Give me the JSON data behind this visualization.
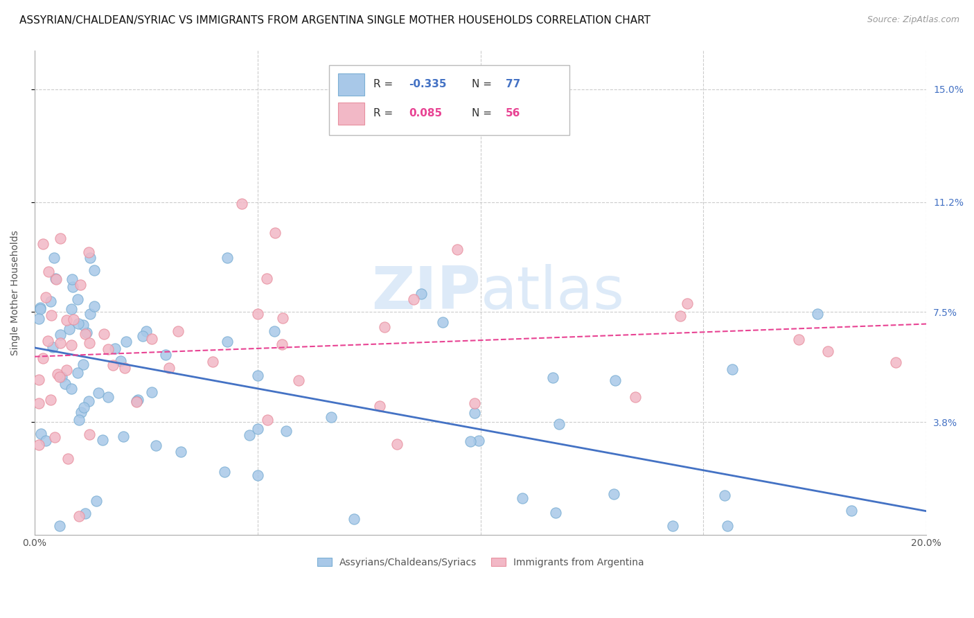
{
  "title": "ASSYRIAN/CHALDEAN/SYRIAC VS IMMIGRANTS FROM ARGENTINA SINGLE MOTHER HOUSEHOLDS CORRELATION CHART",
  "source": "Source: ZipAtlas.com",
  "ylabel": "Single Mother Households",
  "ytick_labels": [
    "15.0%",
    "11.2%",
    "7.5%",
    "3.8%"
  ],
  "ytick_values": [
    0.15,
    0.112,
    0.075,
    0.038
  ],
  "xmin": 0.0,
  "xmax": 0.2,
  "ymin": 0.0,
  "ymax": 0.163,
  "color_blue_fill": "#A8C8E8",
  "color_blue_edge": "#7BAFD4",
  "color_pink_fill": "#F2B8C6",
  "color_pink_edge": "#E8909F",
  "color_blue_line": "#4472C4",
  "color_pink_line": "#E84393",
  "watermark_color": "#DDEAF8",
  "title_fontsize": 11,
  "source_fontsize": 9,
  "legend_label_blue": "Assyrians/Chaldeans/Syriacs",
  "legend_label_pink": "Immigrants from Argentina",
  "blue_line_y_start": 0.063,
  "blue_line_y_end": 0.008,
  "pink_line_y_start": 0.06,
  "pink_line_y_end": 0.071
}
